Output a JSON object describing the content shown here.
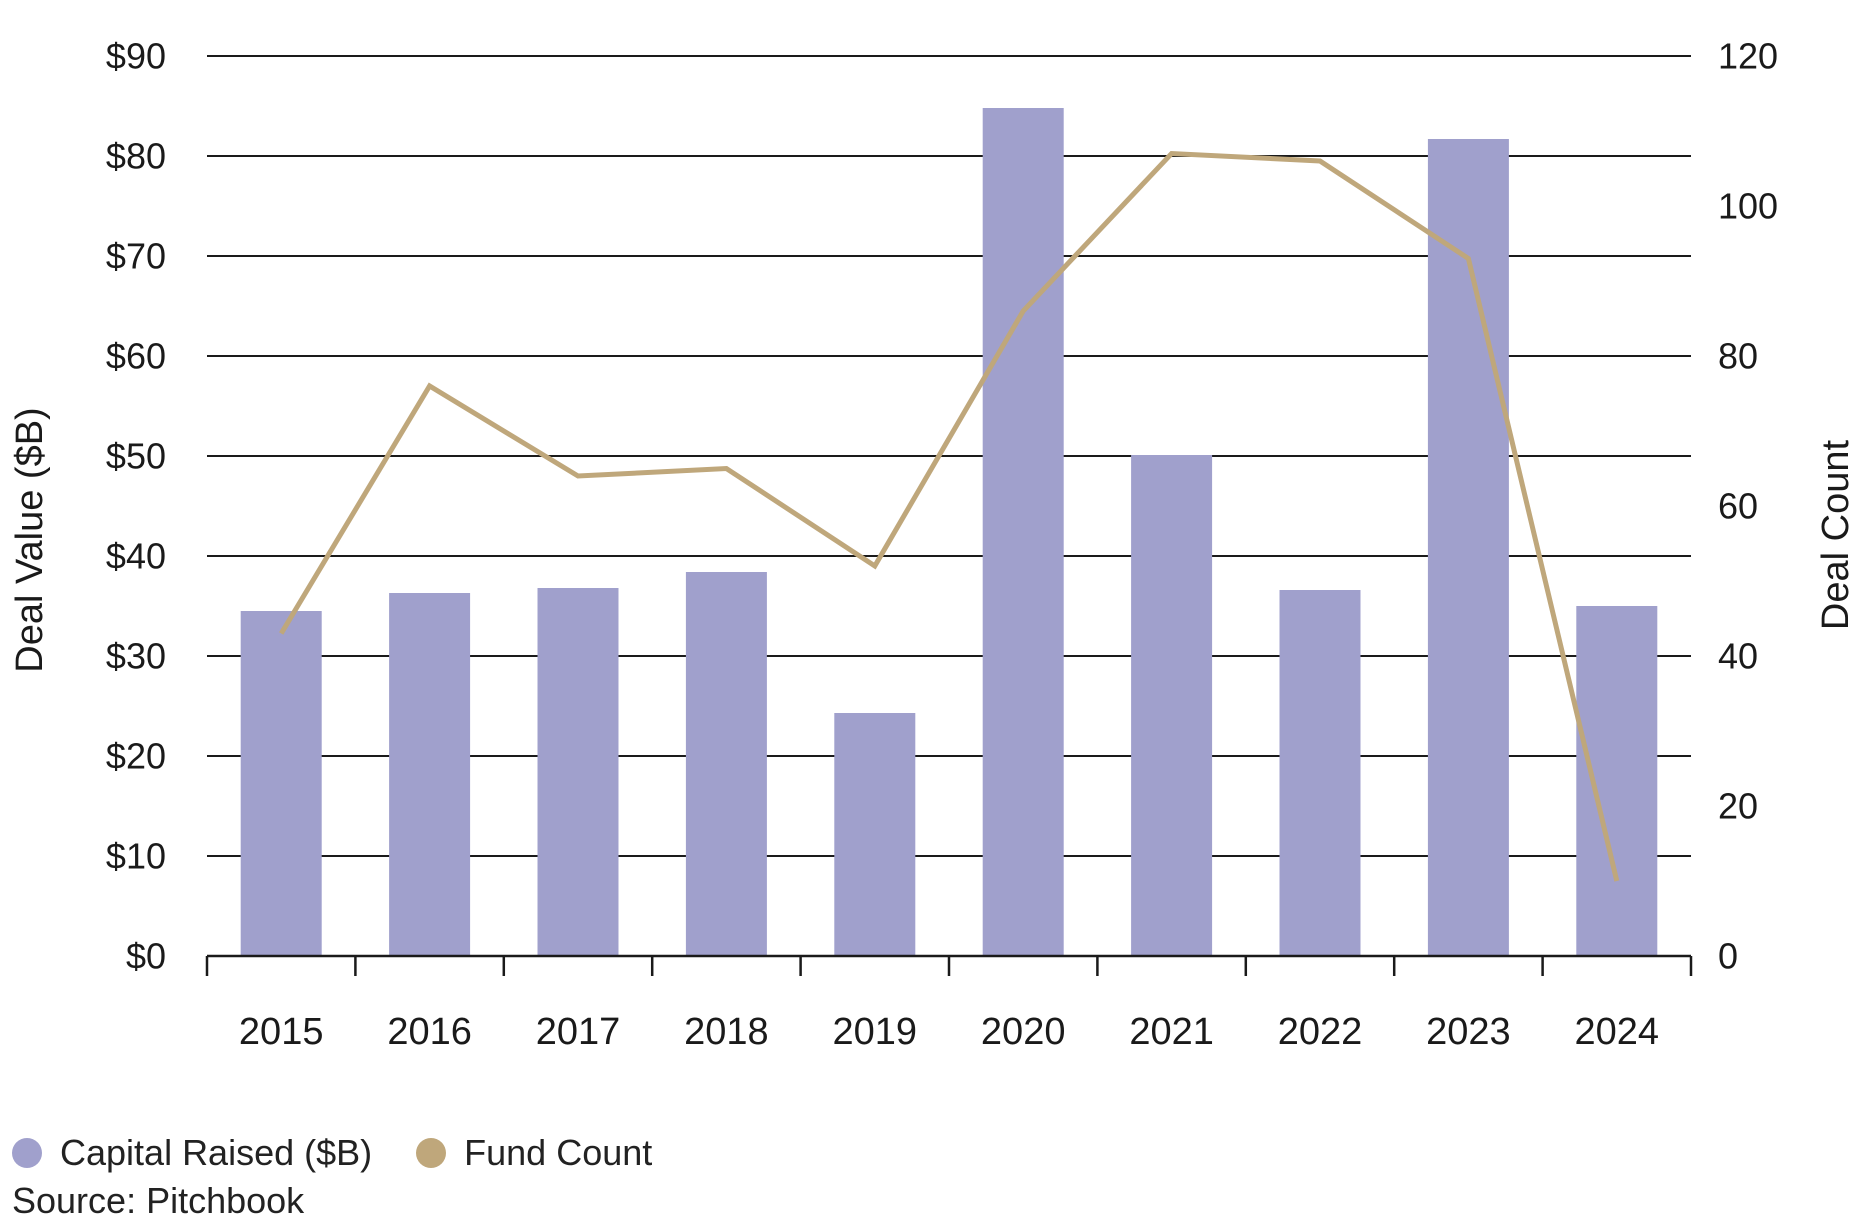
{
  "chart_data": {
    "type": "bar",
    "categories": [
      "2015",
      "2016",
      "2017",
      "2018",
      "2019",
      "2020",
      "2021",
      "2022",
      "2023",
      "2024"
    ],
    "series": [
      {
        "name": "Capital Raised ($B)",
        "type": "bar",
        "axis": "left",
        "color": "#a0a0cc",
        "values": [
          34.5,
          36.3,
          36.8,
          38.4,
          24.3,
          84.8,
          50.1,
          36.6,
          81.7,
          35.0
        ]
      },
      {
        "name": "Fund Count",
        "type": "line",
        "axis": "right",
        "color": "#bfa77b",
        "values": [
          43,
          76,
          64,
          65,
          52,
          86,
          107,
          106,
          93,
          10
        ]
      }
    ],
    "y_left": {
      "label": "Deal Value ($B)",
      "min": 0,
      "max": 90,
      "step": 10,
      "ticks": [
        "$0",
        "$10",
        "$20",
        "$30",
        "$40",
        "$50",
        "$60",
        "$70",
        "$80",
        "$90"
      ]
    },
    "y_right": {
      "label": "Deal Count",
      "min": 0,
      "max": 120,
      "step": 20,
      "ticks": [
        "0",
        "20",
        "40",
        "60",
        "80",
        "100",
        "120"
      ]
    },
    "grid": true,
    "legend_position": "bottom-left"
  },
  "source": "Source: Pitchbook"
}
